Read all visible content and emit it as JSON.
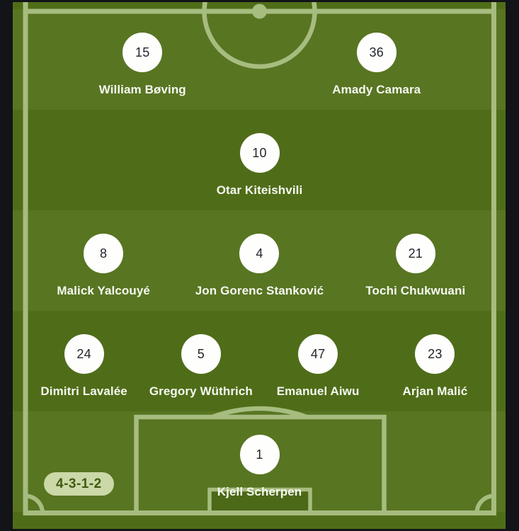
{
  "screen_type": "football-lineup",
  "formation": "4-3-1-2",
  "team": {
    "rows": [
      {
        "role": "forwards",
        "players": [
          {
            "number": "15",
            "name": "William Bøving"
          },
          {
            "number": "36",
            "name": "Amady Camara"
          }
        ]
      },
      {
        "role": "attacking-midfield",
        "players": [
          {
            "number": "10",
            "name": "Otar Kiteishvili"
          }
        ]
      },
      {
        "role": "midfield",
        "players": [
          {
            "number": "8",
            "name": "Malick Yalcouyé"
          },
          {
            "number": "4",
            "name": "Jon Gorenc Stanković"
          },
          {
            "number": "21",
            "name": "Tochi Chukwuani"
          }
        ]
      },
      {
        "role": "defense",
        "players": [
          {
            "number": "24",
            "name": "Dimitri Lavalée"
          },
          {
            "number": "5",
            "name": "Gregory Wüthrich"
          },
          {
            "number": "47",
            "name": "Emanuel Aiwu"
          },
          {
            "number": "23",
            "name": "Arjan Malić"
          }
        ]
      },
      {
        "role": "goalkeeper",
        "players": [
          {
            "number": "1",
            "name": "Kjell Scherpen"
          }
        ]
      }
    ]
  },
  "colors": {
    "frame": "#131417",
    "stripe_light": "#587522",
    "stripe_dark": "#4f6d18",
    "pitch_line": "#a7bc7f",
    "goal_area_fill": "#4b6916",
    "circle_fill": "#fefefd",
    "number_text": "#22262a",
    "name_text": "#f6f8f1",
    "badge_background": "#cbd8a8",
    "badge_text": "#3f5a10"
  }
}
